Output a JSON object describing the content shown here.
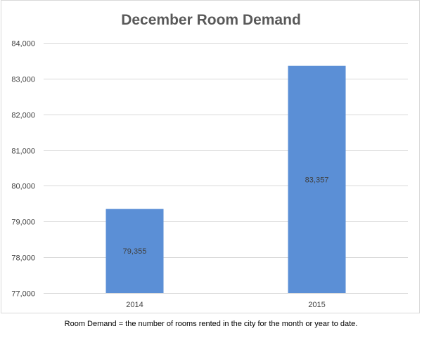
{
  "chart_data": {
    "type": "bar",
    "title": "December Room Demand",
    "categories": [
      "2014",
      "2015"
    ],
    "values": [
      79355,
      83357
    ],
    "data_labels": [
      "79,355",
      "83,357"
    ],
    "ylim": [
      77000,
      84000
    ],
    "yticks": [
      77000,
      78000,
      79000,
      80000,
      81000,
      82000,
      83000,
      84000
    ],
    "ytick_labels": [
      "77,000",
      "78,000",
      "79,000",
      "80,000",
      "81,000",
      "82,000",
      "83,000",
      "84,000"
    ],
    "grid": true,
    "legend": "none",
    "bar_color": "#5b8fd6",
    "gridline_color": "#d9d9d9",
    "label_color": "#404040"
  },
  "footnote": "Room Demand = the number of rooms rented in the city for the month or year to date."
}
